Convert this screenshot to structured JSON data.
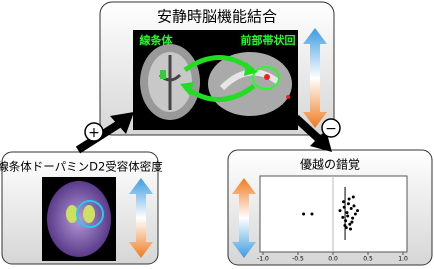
{
  "top_box": {
    "title": "安静時脳機能結合",
    "label_left": "線条体",
    "label_right": "前部帯状回"
  },
  "left_box": {
    "title": "線条体ドーパミンD2受容体密度"
  },
  "right_box": {
    "title": "優越の錯覚",
    "scatter": {
      "xlim": [
        -1,
        1
      ],
      "xticks": [
        {
          "value": -1,
          "label": "-1.0"
        },
        {
          "value": -0.5,
          "label": "-0.5"
        },
        {
          "value": 0,
          "label": "0.0"
        },
        {
          "value": 0.5,
          "label": "0.5"
        },
        {
          "value": 1,
          "label": "1.0"
        }
      ],
      "x": [
        -0.42,
        -0.3,
        0.1,
        0.14,
        0.16,
        0.18,
        0.2,
        0.22,
        0.24,
        0.26,
        0.28,
        0.3,
        0.32,
        0.19,
        0.23,
        0.27,
        0.21,
        0.25,
        0.15,
        0.35,
        0.29,
        0.17
      ],
      "y": [
        0.5,
        0.5,
        0.55,
        0.45,
        0.6,
        0.4,
        0.52,
        0.65,
        0.35,
        0.58,
        0.44,
        0.62,
        0.5,
        0.3,
        0.72,
        0.38,
        0.47,
        0.28,
        0.68,
        0.55,
        0.75,
        0.33
      ]
    }
  },
  "plus": "+",
  "minus": "−"
}
